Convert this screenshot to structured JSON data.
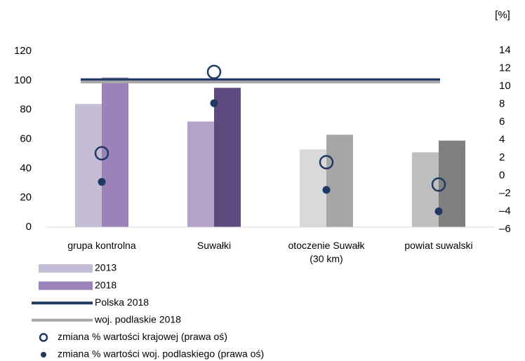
{
  "chart_data": {
    "type": "bar",
    "categories": [
      "grupa kontrolna",
      "Suwałki",
      "otoczenie Suwałk (30 km)",
      "powiat suwalski"
    ],
    "y2_unit": "[%]",
    "series": [
      {
        "name": "2013",
        "type": "bar",
        "color": "#c5bdd6",
        "colors": [
          "#c5bdd6",
          "#b3a3c9",
          "#d9d9d9",
          "#bfbfbf"
        ],
        "values": [
          84,
          72,
          53,
          51
        ]
      },
      {
        "name": "2018",
        "type": "bar",
        "color": "#9b82b8",
        "colors": [
          "#9b82b8",
          "#5e4a7e",
          "#a6a6a6",
          "#808080"
        ],
        "values": [
          102,
          95,
          63,
          59
        ]
      },
      {
        "name": "Polska 2018",
        "type": "hline",
        "color": "#1f3864",
        "value": 100.5
      },
      {
        "name": "woj. podlaskie 2018",
        "type": "hline",
        "color": "#a6a6a6",
        "value": 99
      },
      {
        "name": "zmiana % wartości krajowej (prawa oś)",
        "type": "scatter",
        "marker": "open",
        "axis": "y2",
        "color": "#1f3864",
        "values": [
          2.5,
          11.6,
          1.5,
          -1.0
        ]
      },
      {
        "name": "zmiana % wartości woj. podlaskiego (prawa oś)",
        "type": "scatter",
        "marker": "filled",
        "axis": "y2",
        "color": "#1f3864",
        "values": [
          -0.7,
          8.1,
          -1.6,
          -4.0
        ]
      }
    ],
    "ylim": [
      0,
      120
    ],
    "yticks": [
      0,
      20,
      40,
      60,
      80,
      100,
      120
    ],
    "y2lim": [
      -6,
      14
    ],
    "y2ticks": [
      {
        "value": -6,
        "label": "–6"
      },
      {
        "value": -4,
        "label": "–4"
      },
      {
        "value": -2,
        "label": "–2"
      },
      0,
      2,
      4,
      6,
      8,
      10,
      12,
      14
    ],
    "grid": false
  }
}
